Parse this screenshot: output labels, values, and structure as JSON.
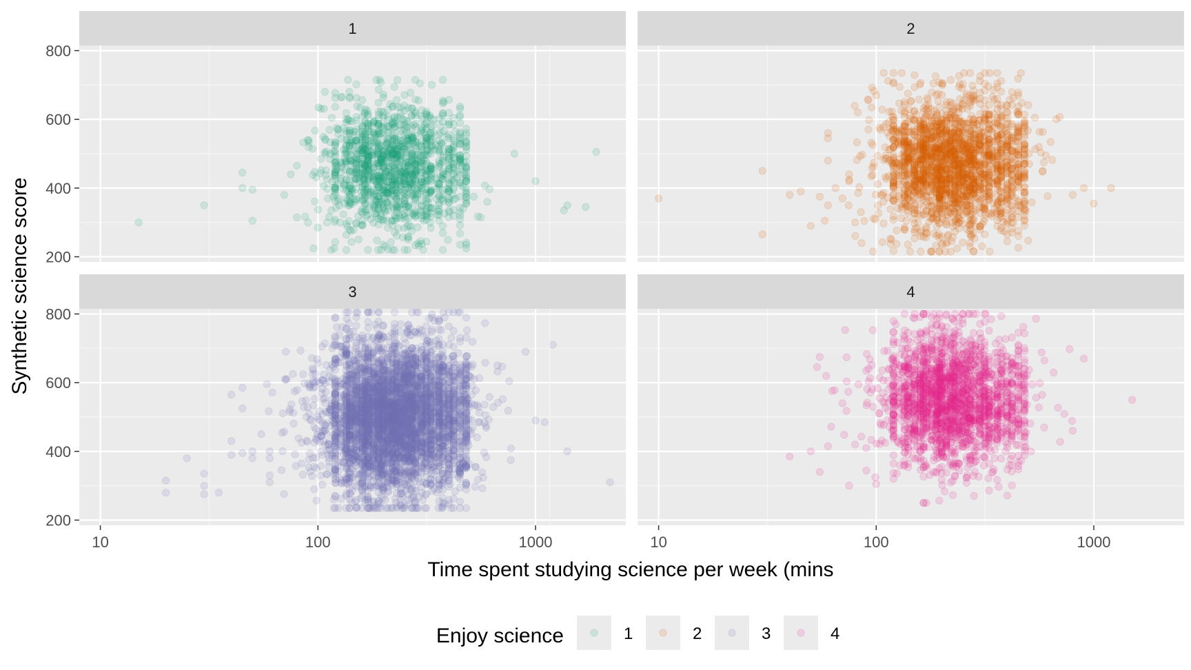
{
  "chart_data": {
    "type": "scatter",
    "facet_by": "Enjoy science",
    "xlabel": "Time spent studying science per week (mins",
    "ylabel": "Synthetic science score",
    "xscale": "log10",
    "xlim": [
      8,
      2600
    ],
    "ylim": [
      185,
      815
    ],
    "x_ticks": [
      10,
      100,
      1000
    ],
    "x_tick_labels": [
      "10",
      "100",
      "1000"
    ],
    "y_ticks": [
      200,
      400,
      600,
      800
    ],
    "y_tick_labels": [
      "200",
      "400",
      "600",
      "800"
    ],
    "grid": true,
    "point_alpha": 0.15,
    "facets": [
      {
        "label": "1",
        "color": "#1b9e77",
        "n_points": 1400,
        "summary": {
          "center_minutes": 210,
          "x_spread_log10": 0.16,
          "y_mean": 460,
          "y_sd": 95,
          "x_range": [
            15,
            1900
          ],
          "y_range": [
            220,
            715
          ]
        },
        "outliers": [
          [
            15,
            300
          ],
          [
            30,
            350
          ],
          [
            45,
            445
          ],
          [
            45,
            400
          ],
          [
            50,
            395
          ],
          [
            50,
            305
          ],
          [
            70,
            380
          ],
          [
            75,
            440
          ],
          [
            80,
            465
          ],
          [
            80,
            315
          ],
          [
            90,
            540
          ],
          [
            90,
            300
          ],
          [
            100,
            285
          ],
          [
            110,
            300
          ],
          [
            480,
            235
          ],
          [
            520,
            375
          ],
          [
            560,
            315
          ],
          [
            600,
            360
          ],
          [
            800,
            500
          ],
          [
            1000,
            420
          ],
          [
            1350,
            335
          ],
          [
            1400,
            350
          ],
          [
            1700,
            345
          ],
          [
            1900,
            505
          ]
        ]
      },
      {
        "label": "2",
        "color": "#d95f02",
        "n_points": 2200,
        "summary": {
          "center_minutes": 215,
          "x_spread_log10": 0.17,
          "y_mean": 470,
          "y_sd": 100,
          "x_range": [
            10,
            1200
          ],
          "y_range": [
            215,
            735
          ]
        },
        "outliers": [
          [
            10,
            370
          ],
          [
            30,
            450
          ],
          [
            30,
            265
          ],
          [
            40,
            380
          ],
          [
            45,
            390
          ],
          [
            50,
            290
          ],
          [
            55,
            375
          ],
          [
            60,
            560
          ],
          [
            60,
            545
          ],
          [
            60,
            480
          ],
          [
            60,
            350
          ],
          [
            65,
            400
          ],
          [
            70,
            370
          ],
          [
            75,
            440
          ],
          [
            75,
            420
          ],
          [
            80,
            300
          ],
          [
            85,
            330
          ],
          [
            800,
            380
          ],
          [
            900,
            400
          ],
          [
            1000,
            355
          ],
          [
            1200,
            400
          ]
        ]
      },
      {
        "label": "3",
        "color": "#7570b3",
        "n_points": 4500,
        "summary": {
          "center_minutes": 215,
          "x_spread_log10": 0.19,
          "y_mean": 500,
          "y_sd": 110,
          "x_range": [
            20,
            2200
          ],
          "y_range": [
            235,
            805
          ]
        },
        "outliers": [
          [
            20,
            315
          ],
          [
            20,
            280
          ],
          [
            25,
            380
          ],
          [
            30,
            335
          ],
          [
            30,
            300
          ],
          [
            30,
            275
          ],
          [
            35,
            280
          ],
          [
            40,
            565
          ],
          [
            40,
            430
          ],
          [
            40,
            390
          ],
          [
            45,
            585
          ],
          [
            45,
            525
          ],
          [
            45,
            395
          ],
          [
            50,
            400
          ],
          [
            50,
            380
          ],
          [
            55,
            450
          ],
          [
            60,
            400
          ],
          [
            60,
            380
          ],
          [
            60,
            330
          ],
          [
            60,
            310
          ],
          [
            900,
            690
          ],
          [
            1000,
            490
          ],
          [
            1100,
            485
          ],
          [
            1200,
            710
          ],
          [
            1400,
            400
          ],
          [
            2200,
            310
          ]
        ]
      },
      {
        "label": "4",
        "color": "#e7298a",
        "n_points": 2200,
        "summary": {
          "center_minutes": 215,
          "x_spread_log10": 0.17,
          "y_mean": 550,
          "y_sd": 100,
          "x_range": [
            40,
            1500
          ],
          "y_range": [
            250,
            800
          ]
        },
        "outliers": [
          [
            40,
            385
          ],
          [
            50,
            400
          ],
          [
            55,
            675
          ],
          [
            55,
            340
          ],
          [
            60,
            415
          ],
          [
            70,
            540
          ],
          [
            75,
            300
          ],
          [
            80,
            420
          ],
          [
            90,
            635
          ],
          [
            90,
            410
          ],
          [
            100,
            305
          ],
          [
            800,
            460
          ],
          [
            900,
            670
          ],
          [
            1500,
            550
          ]
        ]
      }
    ],
    "legend": {
      "title": "Enjoy science",
      "position": "bottom",
      "items": [
        {
          "label": "1",
          "color": "#1b9e77"
        },
        {
          "label": "2",
          "color": "#d95f02"
        },
        {
          "label": "3",
          "color": "#7570b3"
        },
        {
          "label": "4",
          "color": "#e7298a"
        }
      ]
    }
  }
}
